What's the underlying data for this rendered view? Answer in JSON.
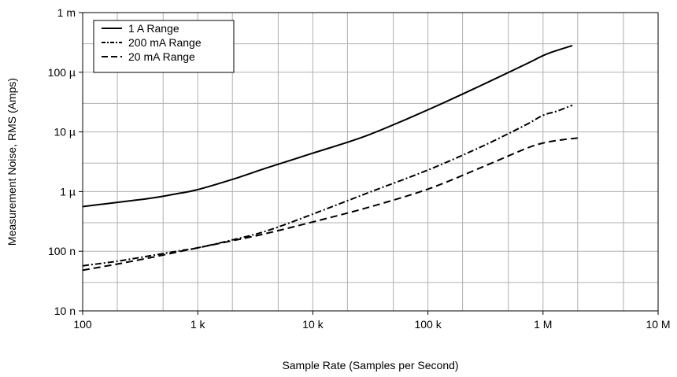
{
  "chart_data": {
    "type": "line",
    "title": "",
    "xlabel": "Sample Rate (Samples per Second)",
    "ylabel": "Measurement Noise, RMS (Amps)",
    "xscale": "log",
    "yscale": "log",
    "xlim": [
      100,
      10000000
    ],
    "ylim": [
      1e-08,
      0.001
    ],
    "grid": true,
    "legend_position": "top-left",
    "x_ticks": [
      {
        "value": 100,
        "label": "100"
      },
      {
        "value": 1000,
        "label": "1 k"
      },
      {
        "value": 10000,
        "label": "10 k"
      },
      {
        "value": 100000,
        "label": "100 k"
      },
      {
        "value": 1000000,
        "label": "1 M"
      },
      {
        "value": 10000000,
        "label": "10 M"
      }
    ],
    "y_ticks": [
      {
        "value": 1e-08,
        "label": "10 n"
      },
      {
        "value": 1e-07,
        "label": "100 n"
      },
      {
        "value": 1e-06,
        "label": "1 µ"
      },
      {
        "value": 1e-05,
        "label": "10 µ"
      },
      {
        "value": 0.0001,
        "label": "100 µ"
      },
      {
        "value": 0.001,
        "label": "1 m"
      }
    ],
    "series": [
      {
        "name": "1 A Range",
        "dash": "solid",
        "x": [
          100,
          200,
          400,
          700,
          1000,
          2000,
          4000,
          10000,
          30000,
          100000,
          300000,
          700000,
          1000000,
          1300000,
          1800000
        ],
        "y": [
          5.6e-07,
          6.6e-07,
          7.8e-07,
          9.4e-07,
          1.08e-06,
          1.6e-06,
          2.5e-06,
          4.4e-06,
          8.8e-06,
          2.35e-05,
          6.2e-05,
          0.000135,
          0.00019,
          0.00023,
          0.00028
        ]
      },
      {
        "name": "200 mA Range",
        "dash": "dash-dot",
        "x": [
          100,
          200,
          400,
          700,
          1000,
          2000,
          4000,
          10000,
          30000,
          100000,
          300000,
          700000,
          1000000,
          1300000,
          1800000
        ],
        "y": [
          5.7e-08,
          6.8e-08,
          8.5e-08,
          1.02e-07,
          1.14e-07,
          1.55e-07,
          2.2e-07,
          4.2e-07,
          9.5e-07,
          2.3e-06,
          5.8e-06,
          1.3e-05,
          1.9e-05,
          2.2e-05,
          2.8e-05
        ]
      },
      {
        "name": "20 mA Range",
        "dash": "dashed",
        "x": [
          100,
          200,
          400,
          700,
          1000,
          2000,
          4000,
          10000,
          30000,
          100000,
          300000,
          700000,
          1000000,
          1400000,
          2000000
        ],
        "y": [
          4.8e-08,
          6.1e-08,
          7.9e-08,
          9.9e-08,
          1.14e-07,
          1.5e-07,
          2e-07,
          3.1e-07,
          5.4e-07,
          1.1e-06,
          2.6e-06,
          5.2e-06,
          6.5e-06,
          7.3e-06,
          7.9e-06
        ]
      }
    ]
  }
}
